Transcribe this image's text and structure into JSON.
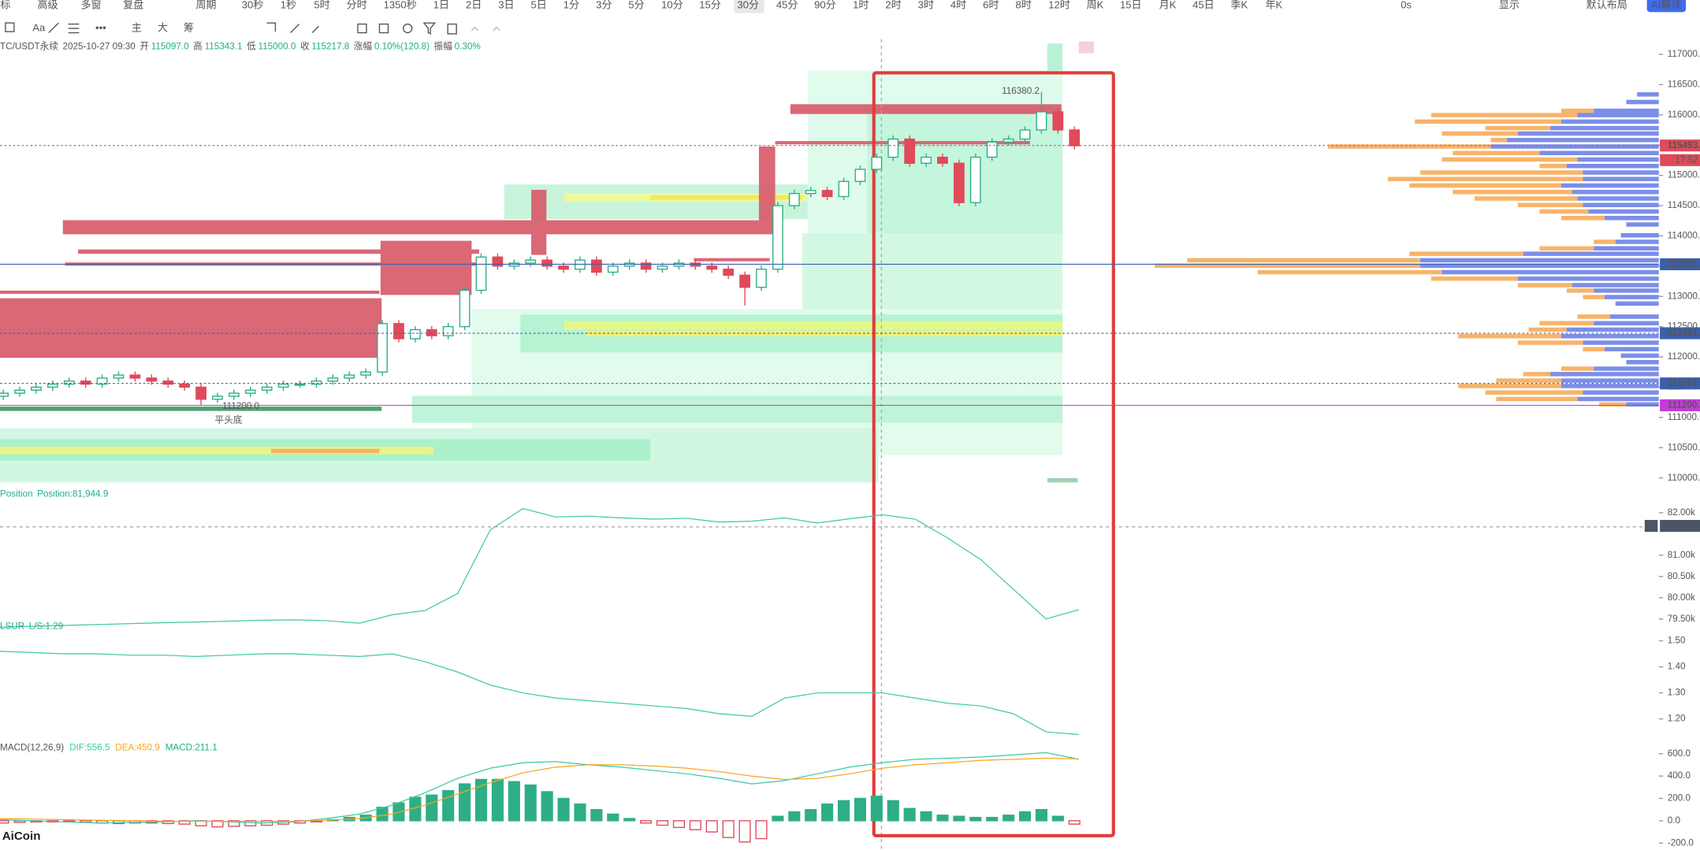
{
  "toolbar": {
    "left": [
      "标",
      "高级",
      "多窗",
      "复盘",
      "周期"
    ],
    "timeframes": [
      "30秒",
      "1秒",
      "5时",
      "分时",
      "1350秒",
      "1日",
      "2日",
      "3日",
      "5日",
      "1分",
      "3分",
      "5分",
      "10分",
      "15分",
      "30分",
      "45分",
      "90分",
      "1时",
      "2时",
      "3时",
      "4时",
      "6时",
      "8时",
      "12时",
      "周K",
      "15日",
      "月K",
      "45日",
      "季K",
      "年K"
    ],
    "active": "30分",
    "right": [
      "0s",
      "显示",
      "默认布局",
      "AI解读"
    ],
    "row2": [
      "主",
      "大",
      "筹"
    ]
  },
  "info": {
    "symbol": "TC/USDT永续",
    "time": "2025-10-27 09:30",
    "items": [
      [
        "开",
        "115097.0"
      ],
      [
        "高",
        "115343.1"
      ],
      [
        "低",
        "115000.0"
      ],
      [
        "收",
        "115217.8"
      ],
      [
        "涨幅",
        "0.10%(120.8)"
      ],
      [
        "振幅",
        "0.30%"
      ]
    ]
  },
  "annotations": {
    "high": "116380.2",
    "low": "111200.0",
    "pattern": "平头底"
  },
  "logo": "AiCoin",
  "chart_data": [
    {
      "type": "candlestick",
      "up_color": "#2eae86",
      "down_color": "#e04a5a",
      "open": [
        111350,
        111400,
        111450,
        111500,
        111550,
        111600,
        111550,
        111650,
        111700,
        111650,
        111600,
        111550,
        111500,
        111300,
        111350,
        111400,
        111450,
        111500,
        111550,
        111550,
        111600,
        111650,
        111700,
        111750,
        112550,
        112300,
        112450,
        112350,
        112500,
        113100,
        113650,
        113500,
        113550,
        113600,
        113500,
        113450,
        113600,
        113400,
        113500,
        113550,
        113450,
        113500,
        113550,
        113500,
        113450,
        113350,
        113150,
        113450,
        114500,
        114700,
        114750,
        114650,
        114900,
        115100,
        115300,
        115600,
        115200,
        115300,
        115200,
        114550,
        115300,
        115550,
        115600,
        115750,
        116050,
        115750
      ],
      "high": [
        111460,
        111510,
        111560,
        111610,
        111660,
        111660,
        111710,
        111760,
        111760,
        111710,
        111660,
        111610,
        111560,
        111410,
        111460,
        111510,
        111560,
        111610,
        111610,
        111660,
        111710,
        111760,
        111810,
        112610,
        112610,
        112510,
        112510,
        112560,
        113160,
        113710,
        113710,
        113610,
        113660,
        113660,
        113560,
        113660,
        113660,
        113560,
        113610,
        113610,
        113560,
        113610,
        113610,
        113560,
        113510,
        113410,
        113510,
        114560,
        114760,
        114810,
        114810,
        114960,
        115160,
        115360,
        115660,
        115660,
        115360,
        115360,
        115260,
        115360,
        115610,
        115660,
        115810,
        116380,
        116110,
        115810
      ],
      "low": [
        111290,
        111340,
        111390,
        111440,
        111490,
        111490,
        111490,
        111590,
        111590,
        111540,
        111490,
        111440,
        111200,
        111240,
        111290,
        111340,
        111390,
        111440,
        111490,
        111490,
        111540,
        111590,
        111640,
        111690,
        112240,
        112240,
        112290,
        112290,
        112440,
        113040,
        113440,
        113440,
        113490,
        113440,
        113390,
        113390,
        113340,
        113340,
        113440,
        113390,
        113390,
        113440,
        113440,
        113390,
        113290,
        112850,
        113090,
        113390,
        114440,
        114640,
        114590,
        114590,
        114840,
        115040,
        115240,
        115140,
        115140,
        115140,
        114490,
        114490,
        115240,
        115490,
        115540,
        115690,
        115690,
        115430
      ],
      "close": [
        111400,
        111450,
        111500,
        111550,
        111600,
        111550,
        111650,
        111700,
        111650,
        111600,
        111550,
        111500,
        111300,
        111350,
        111400,
        111450,
        111500,
        111550,
        111550,
        111600,
        111650,
        111700,
        111750,
        112550,
        112300,
        112450,
        112350,
        112500,
        113100,
        113650,
        113500,
        113550,
        113600,
        113500,
        113450,
        113600,
        113400,
        113500,
        113550,
        113450,
        113500,
        113550,
        113500,
        113450,
        113350,
        113150,
        113450,
        114500,
        114700,
        114750,
        114650,
        114900,
        115100,
        115300,
        115600,
        115200,
        115300,
        115200,
        114550,
        115300,
        115550,
        115600,
        115750,
        116050,
        115750,
        115490
      ],
      "ylim": [
        109800,
        117250
      ],
      "yticks": [
        {
          "value": 110000,
          "label": "110000.0"
        },
        {
          "value": 110500,
          "label": "110500.0"
        },
        {
          "value": 111000,
          "label": "111000.0"
        },
        {
          "value": 111500,
          "label": "111500.0"
        },
        {
          "value": 112000,
          "label": "112000.0"
        },
        {
          "value": 112500,
          "label": "112500.0"
        },
        {
          "value": 113000,
          "label": "113000.0"
        },
        {
          "value": 113500,
          "label": "113500.0"
        },
        {
          "value": 114000,
          "label": "114000.0"
        },
        {
          "value": 114500,
          "label": "114500.0"
        },
        {
          "value": 115000,
          "label": "115000.0"
        },
        {
          "value": 115500,
          "label": "115500.0"
        },
        {
          "value": 116000,
          "label": "116000.0"
        },
        {
          "value": 116500,
          "label": "116500.0"
        },
        {
          "value": 117000,
          "label": "117000.0"
        }
      ],
      "price_lines": [
        {
          "value": 115493.5,
          "label": "115493.5",
          "color": "#e04a5a",
          "dashed": true
        },
        {
          "value": 113531,
          "label": "113531.0",
          "color": "#3b5fa8",
          "dashed": false
        },
        {
          "value": 112391,
          "label": "112391.0",
          "color": "#3b5fa8",
          "dashed": true
        },
        {
          "value": 111562,
          "label": "111562.0",
          "color": "#3b5fa8",
          "dashed": true
        },
        {
          "value": 111200,
          "label": "111200.0",
          "color": "#c43bd9",
          "dashed": false
        }
      ],
      "countdown": "17:52"
    },
    {
      "type": "line",
      "title": "Position",
      "value_label": "Position:81,944.9",
      "color": "#3cc8a8",
      "values": [
        79310,
        79330,
        79350,
        79370,
        79390,
        79410,
        79430,
        79450,
        79470,
        79480,
        79460,
        79400,
        79600,
        79700,
        80100,
        81600,
        82100,
        81900,
        81920,
        81880,
        81850,
        81870,
        81780,
        81800,
        81880,
        81760,
        81860,
        81950,
        81850,
        81400,
        80900,
        80200,
        79500,
        79720
      ],
      "ylim": [
        79220,
        82280
      ],
      "yticks": [
        {
          "value": 79500,
          "label": "79.50k"
        },
        {
          "value": 80000,
          "label": "80.00k"
        },
        {
          "value": 80500,
          "label": "80.50k"
        },
        {
          "value": 81000,
          "label": "81.00k"
        },
        {
          "value": 82000,
          "label": "82.00k"
        }
      ],
      "cursor": {
        "value": 81690,
        "label": "81.69k"
      }
    },
    {
      "type": "line",
      "title": "LSUR",
      "value_label": "L/S:1.29",
      "color": "#3cc8a8",
      "values": [
        1.46,
        1.455,
        1.45,
        1.45,
        1.445,
        1.445,
        1.44,
        1.445,
        1.45,
        1.45,
        1.445,
        1.44,
        1.45,
        1.42,
        1.38,
        1.33,
        1.3,
        1.28,
        1.27,
        1.26,
        1.25,
        1.24,
        1.22,
        1.21,
        1.28,
        1.3,
        1.3,
        1.3,
        1.28,
        1.26,
        1.25,
        1.22,
        1.15,
        1.14
      ],
      "ylim": [
        1.13,
        1.53
      ],
      "yticks": [
        {
          "value": 1.2,
          "label": "1.20"
        },
        {
          "value": 1.3,
          "label": "1.30"
        },
        {
          "value": 1.4,
          "label": "1.40"
        },
        {
          "value": 1.5,
          "label": "1.50"
        }
      ]
    },
    {
      "type": "macd",
      "title": "MACD(12,26,9)",
      "hist_label": "MACD:211.1",
      "pos_color": "#2eae86",
      "neg_color": "#e04a5a",
      "values": [
        -20,
        -15,
        -10,
        -10,
        -10,
        -15,
        -20,
        -25,
        -20,
        -20,
        -25,
        -30,
        -45,
        -55,
        -50,
        -45,
        -40,
        -30,
        -20,
        -10,
        10,
        30,
        50,
        120,
        160,
        210,
        230,
        270,
        330,
        370,
        370,
        350,
        320,
        260,
        200,
        150,
        100,
        60,
        20,
        -20,
        -40,
        -60,
        -80,
        -100,
        -150,
        -190,
        -160,
        40,
        80,
        100,
        150,
        180,
        200,
        220,
        180,
        110,
        80,
        50,
        40,
        30,
        30,
        50,
        80,
        100,
        40,
        -30
      ],
      "series": [
        {
          "label": "DIF:556.5",
          "color": "#3cc8a8",
          "values": [
            10,
            0,
            -10,
            -20,
            -15,
            -10,
            0,
            -10,
            -20,
            -10,
            20,
            60,
            140,
            250,
            380,
            470,
            520,
            530,
            500,
            480,
            450,
            420,
            380,
            330,
            360,
            420,
            480,
            520,
            550,
            560,
            570,
            590,
            610,
            550
          ]
        },
        {
          "label": "DEA:450.9",
          "color": "#f5a623",
          "values": [
            20,
            15,
            10,
            5,
            0,
            -5,
            -5,
            -5,
            -5,
            -5,
            5,
            20,
            60,
            140,
            240,
            340,
            430,
            480,
            500,
            500,
            490,
            470,
            440,
            400,
            370,
            380,
            420,
            470,
            500,
            520,
            540,
            550,
            560,
            555
          ]
        }
      ],
      "ylim": [
        -260,
        710
      ],
      "yticks": [
        {
          "value": -200,
          "label": "-200.0"
        },
        {
          "value": 0,
          "label": "0.0"
        },
        {
          "value": 200,
          "label": "200.0"
        },
        {
          "value": 400,
          "label": "400.0"
        },
        {
          "value": 600,
          "label": "600.0"
        }
      ]
    }
  ]
}
